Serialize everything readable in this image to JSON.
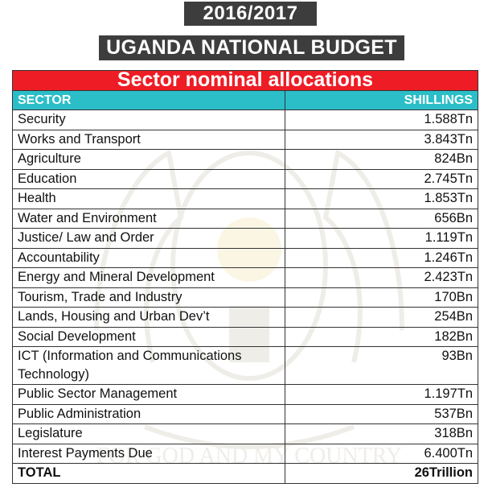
{
  "header": {
    "year": "2016/2017",
    "title": "UGANDA NATIONAL BUDGET"
  },
  "table": {
    "caption": "Sector nominal allocations",
    "columns": {
      "sector": "SECTOR",
      "amount": "SHILLINGS"
    },
    "rows": [
      {
        "sector": "Security",
        "amount": "1.588Tn"
      },
      {
        "sector": "Works and Transport",
        "amount": "3.843Tn"
      },
      {
        "sector": "Agriculture",
        "amount": "824Bn"
      },
      {
        "sector": "Education",
        "amount": "2.745Tn"
      },
      {
        "sector": "Health",
        "amount": "1.853Tn"
      },
      {
        "sector": "Water and Environment",
        "amount": "656Bn"
      },
      {
        "sector": "Justice/ Law and Order",
        "amount": "1.119Tn"
      },
      {
        "sector": "Accountability",
        "amount": "1.246Tn"
      },
      {
        "sector": "Energy and Mineral Development",
        "amount": "2.423Tn"
      },
      {
        "sector": "Tourism, Trade and Industry",
        "amount": "170Bn"
      },
      {
        "sector": "Lands, Housing and Urban Dev’t",
        "amount": "254Bn"
      },
      {
        "sector": "Social Development",
        "amount": "182Bn"
      },
      {
        "sector": "ICT (Information and Communications Technology)",
        "amount": "93Bn"
      },
      {
        "sector": "Public Sector Management",
        "amount": "1.197Tn"
      },
      {
        "sector": "Public Administration",
        "amount": "537Bn"
      },
      {
        "sector": "Legislature",
        "amount": "318Bn"
      },
      {
        "sector": "Interest Payments Due",
        "amount": "6.400Tn"
      }
    ],
    "total": {
      "label": "TOTAL",
      "amount": "26Trillion"
    }
  },
  "watermark": {
    "motto": "FOR GOD AND MY COUNTRY",
    "icon": "uganda-coat-of-arms-icon"
  },
  "colors": {
    "banner_bg": "#3d3d3d",
    "caption_bg": "#ee1c25",
    "column_header_bg": "#2bbec8"
  }
}
